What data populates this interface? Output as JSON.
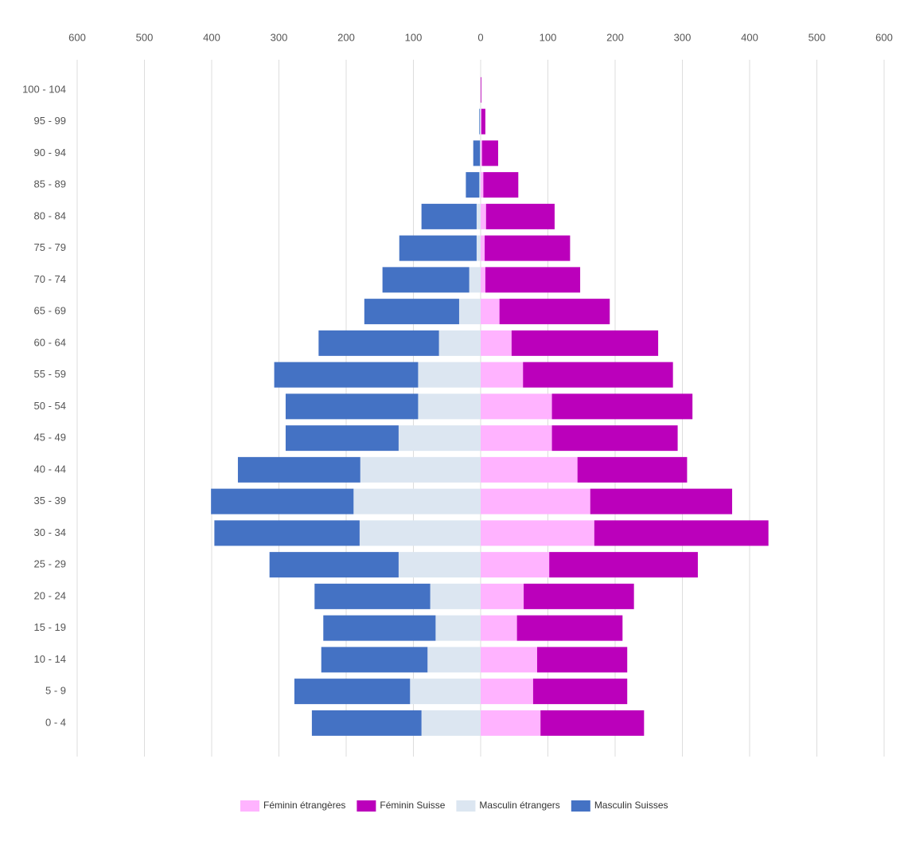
{
  "chart_data": {
    "type": "bar",
    "orientation": "horizontal",
    "stacked": true,
    "categories": [
      "100 - 104",
      "95 - 99",
      "90 - 94",
      "85 - 89",
      "80 - 84",
      "75 - 79",
      "70 - 74",
      "65 - 69",
      "60 - 64",
      "55 - 59",
      "50 - 54",
      "45 - 49",
      "40 - 44",
      "35 - 39",
      "30 - 34",
      "25 - 29",
      "20 - 24",
      "15 - 19",
      "10 - 14",
      "5 - 9",
      "0 - 4"
    ],
    "series": [
      {
        "name": "Féminin étrangères",
        "color": "#ffb3ff",
        "values": [
          0,
          1,
          2,
          4,
          8,
          6,
          7,
          28,
          46,
          63,
          106,
          106,
          144,
          163,
          169,
          102,
          64,
          54,
          84,
          78,
          89
        ]
      },
      {
        "name": "Féminin Suisse",
        "color": "#bb00bb",
        "values": [
          1,
          6,
          24,
          52,
          102,
          127,
          141,
          164,
          218,
          223,
          209,
          187,
          163,
          211,
          259,
          221,
          164,
          157,
          134,
          140,
          154
        ]
      },
      {
        "name": "Masculin étrangers",
        "color": "#dce6f1",
        "values": [
          0,
          -1,
          -1,
          -2,
          -6,
          -6,
          -17,
          -32,
          -62,
          -93,
          -93,
          -122,
          -179,
          -189,
          -180,
          -122,
          -75,
          -67,
          -79,
          -105,
          -88
        ]
      },
      {
        "name": "Masculin Suisses",
        "color": "#4472c4",
        "values": [
          0,
          -1,
          -10,
          -20,
          -82,
          -115,
          -129,
          -141,
          -179,
          -214,
          -197,
          -168,
          -182,
          -212,
          -216,
          -192,
          -172,
          -167,
          -158,
          -172,
          -163
        ]
      }
    ],
    "xlim": [
      -600,
      600
    ],
    "xticks": [
      {
        "value": -600,
        "label": "600"
      },
      {
        "value": -500,
        "label": "500"
      },
      {
        "value": -400,
        "label": "400"
      },
      {
        "value": -300,
        "label": "300"
      },
      {
        "value": -200,
        "label": "200"
      },
      {
        "value": -100,
        "label": "100"
      },
      0,
      100,
      200,
      300,
      400,
      500,
      600
    ],
    "grid": true,
    "legend": "bottom"
  }
}
